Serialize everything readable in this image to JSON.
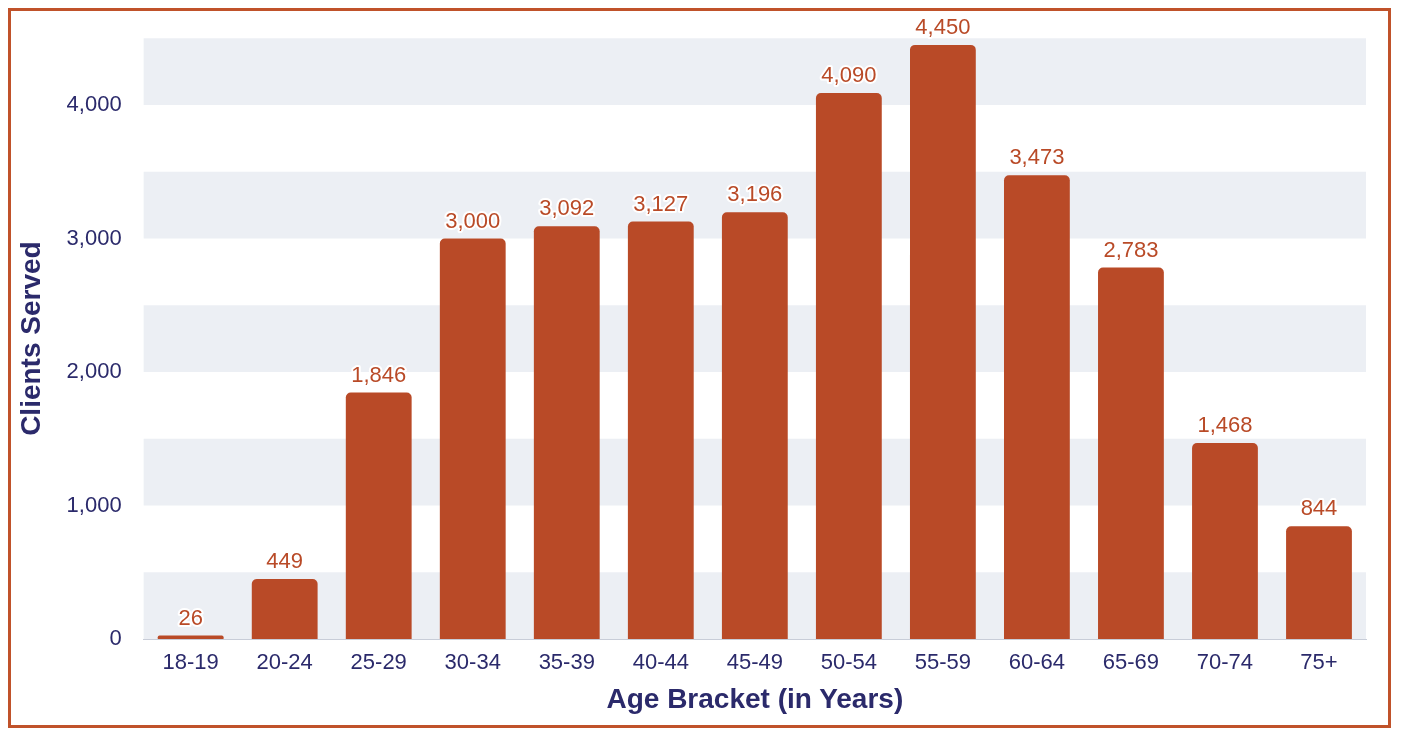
{
  "chart_data": {
    "type": "bar",
    "xlabel": "Age Bracket (in Years)",
    "ylabel": "Clients Served",
    "categories": [
      "18-19",
      "20-24",
      "25-29",
      "30-34",
      "35-39",
      "40-44",
      "45-49",
      "50-54",
      "55-59",
      "60-64",
      "65-69",
      "70-74",
      "75+"
    ],
    "values": [
      26,
      449,
      1846,
      3000,
      3092,
      3127,
      3196,
      4090,
      4450,
      3473,
      2783,
      1468,
      844
    ],
    "color": "#b94a27",
    "ylim": [
      0,
      4500
    ],
    "yticks": [
      {
        "value": 0,
        "label": "0"
      },
      {
        "value": 1000,
        "label": "1,000"
      },
      {
        "value": 2000,
        "label": "2,000"
      },
      {
        "value": 3000,
        "label": "3,000"
      },
      {
        "value": 4000,
        "label": "4,000"
      }
    ],
    "value_labels": [
      "26",
      "449",
      "1,846",
      "3,000",
      "3,092",
      "3,127",
      "3,196",
      "4,090",
      "4,450",
      "3,473",
      "2,783",
      "1,468",
      "844"
    ],
    "bands": [
      {
        "axis": "y",
        "from": 0,
        "to": 500,
        "color": "#eceff4"
      },
      {
        "axis": "y",
        "from": 1000,
        "to": 1500,
        "color": "#eceff4"
      },
      {
        "axis": "y",
        "from": 2000,
        "to": 2500,
        "color": "#eceff4"
      },
      {
        "axis": "y",
        "from": 3000,
        "to": 3500,
        "color": "#eceff4"
      },
      {
        "axis": "y",
        "from": 4000,
        "to": 4500,
        "color": "#eceff4"
      }
    ]
  }
}
